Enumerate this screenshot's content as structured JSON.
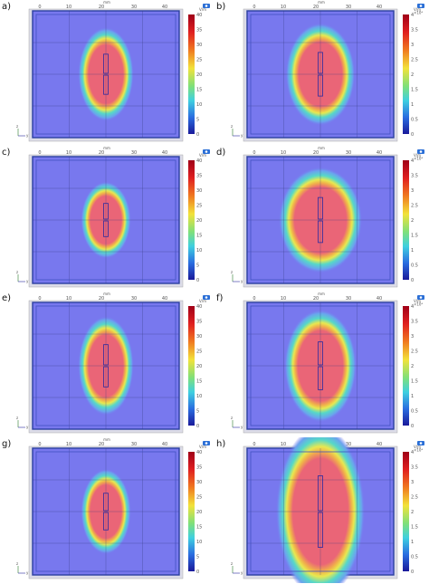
{
  "panels": [
    {
      "letter": "a)",
      "field": {
        "w": 0.2,
        "h": 0.55
      },
      "mode": "a"
    },
    {
      "letter": "b)",
      "field": {
        "w": 0.25,
        "h": 0.6
      },
      "mode": "b"
    },
    {
      "letter": "c)",
      "field": {
        "w": 0.18,
        "h": 0.45
      },
      "mode": "c"
    },
    {
      "letter": "d)",
      "field": {
        "w": 0.3,
        "h": 0.62
      },
      "mode": "d"
    },
    {
      "letter": "e)",
      "field": {
        "w": 0.2,
        "h": 0.58
      },
      "mode": "e"
    },
    {
      "letter": "f)",
      "field": {
        "w": 0.26,
        "h": 0.66
      },
      "mode": "f"
    },
    {
      "letter": "g)",
      "field": {
        "w": 0.18,
        "h": 0.5
      },
      "mode": "g"
    },
    {
      "letter": "h)",
      "field": {
        "w": 0.32,
        "h": 1.0
      },
      "mode": "h"
    }
  ],
  "axis_labels": {
    "x_ticks": [
      "0",
      "10",
      "20",
      "30",
      "40"
    ],
    "mm_label": "mm",
    "colorbar_ticks_a": [
      "40",
      "35",
      "30",
      "25",
      "20",
      "15",
      "10",
      "5",
      "0"
    ],
    "colorbar_ticks_b": [
      "4",
      "3.5",
      "3",
      "2.5",
      "2",
      "1.5",
      "1",
      "0.5",
      "0"
    ],
    "unit_label": "V/m",
    "exponent_label": "×10⁴"
  },
  "colors": {
    "background": "#7777ee",
    "hot": "#e85c6a",
    "mid": "#f3d04c",
    "cool": "#4fd3d6",
    "frame": "#2b3fa0"
  },
  "icon": {
    "name": "comsol-logo-icon"
  }
}
